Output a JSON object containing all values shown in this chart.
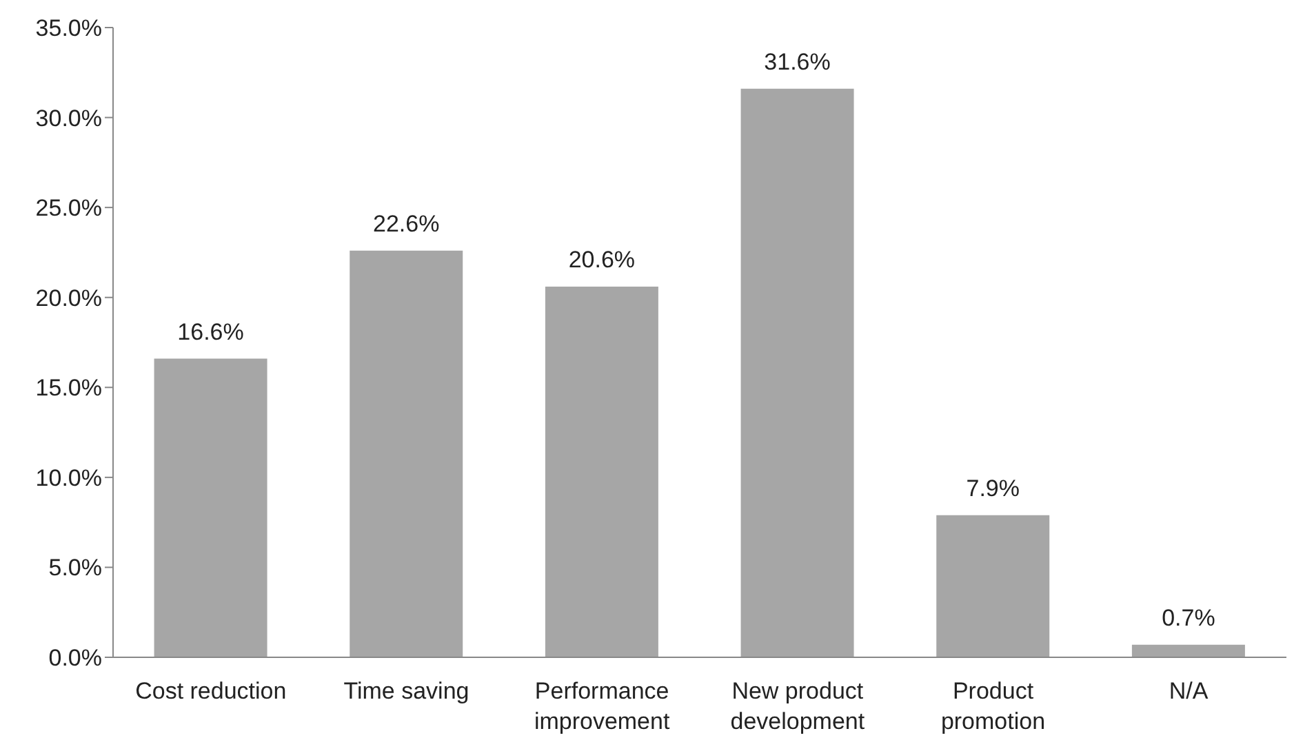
{
  "chart_data": {
    "type": "bar",
    "categories": [
      "Cost reduction",
      "Time saving",
      "Performance improvement",
      "New product development",
      "Product promotion",
      "N/A"
    ],
    "values": [
      16.6,
      22.6,
      20.6,
      31.6,
      7.9,
      0.7
    ],
    "value_labels": [
      "16.6%",
      "22.6%",
      "20.6%",
      "31.6%",
      "7.9%",
      "0.7%"
    ],
    "color": "#a6a6a6",
    "ylim": [
      0,
      35
    ],
    "yticks": [
      {
        "value": 0,
        "label": "0.0%"
      },
      {
        "value": 5,
        "label": "5.0%"
      },
      {
        "value": 10,
        "label": "10.0%"
      },
      {
        "value": 15,
        "label": "15.0%"
      },
      {
        "value": 20,
        "label": "20.0%"
      },
      {
        "value": 25,
        "label": "25.0%"
      },
      {
        "value": 30,
        "label": "30.0%"
      },
      {
        "value": 35,
        "label": "35.0%"
      }
    ],
    "grid": false,
    "legend": false
  }
}
